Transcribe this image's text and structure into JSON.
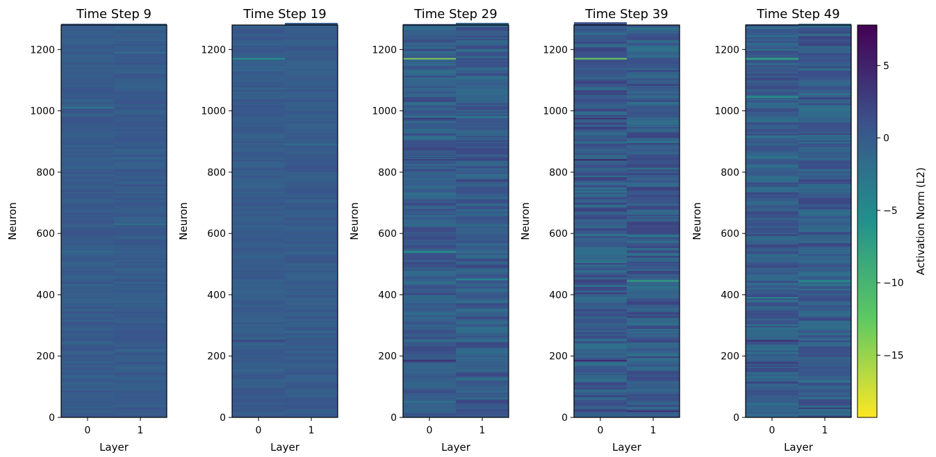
{
  "chart_data": {
    "type": "heatmap",
    "colormap": "viridis_r",
    "colors": {
      "background": "#ffffff",
      "axis": "#000000",
      "base_cell": "#2f5e8e",
      "viridis_r_stops": [
        "#fde725",
        "#5ec962",
        "#21918c",
        "#3b528b",
        "#440154"
      ]
    },
    "y_range": [
      0,
      1280
    ],
    "y_ticks": [
      0,
      200,
      400,
      600,
      800,
      1000,
      1200
    ],
    "x_categories": [
      "0",
      "1"
    ],
    "xlabel": "Layer",
    "ylabel": "Neuron",
    "panels": [
      {
        "title": "Time Step 9",
        "noise": 0.35,
        "bright_lines": [
          {
            "layer": 0,
            "neuron": 1010,
            "value": -3
          },
          {
            "layer": 1,
            "neuron": 1190,
            "value": -2
          },
          {
            "layer": 0,
            "neuron": 540,
            "value": -2
          },
          {
            "layer": 1,
            "neuron": 630,
            "value": -2
          }
        ]
      },
      {
        "title": "Time Step 19",
        "noise": 0.35,
        "bright_lines": [
          {
            "layer": 0,
            "neuron": 1170,
            "value": -6
          },
          {
            "layer": 1,
            "neuron": 890,
            "value": -2
          },
          {
            "layer": 0,
            "neuron": 250,
            "value": 2
          }
        ]
      },
      {
        "title": "Time Step 29",
        "noise": 0.9,
        "bright_lines": [
          {
            "layer": 0,
            "neuron": 1170,
            "value": -14
          },
          {
            "layer": 0,
            "neuron": 540,
            "value": -6
          },
          {
            "layer": 0,
            "neuron": 975,
            "value": 3
          },
          {
            "layer": 0,
            "neuron": 840,
            "value": 3
          },
          {
            "layer": 0,
            "neuron": 185,
            "value": 4
          },
          {
            "layer": 1,
            "neuron": 450,
            "value": -5
          },
          {
            "layer": 1,
            "neuron": 980,
            "value": -4
          }
        ]
      },
      {
        "title": "Time Step 39",
        "noise": 1.1,
        "bright_lines": [
          {
            "layer": 0,
            "neuron": 1170,
            "value": -13
          },
          {
            "layer": 0,
            "neuron": 975,
            "value": 4
          },
          {
            "layer": 0,
            "neuron": 840,
            "value": 5
          },
          {
            "layer": 0,
            "neuron": 185,
            "value": 5
          },
          {
            "layer": 1,
            "neuron": 445,
            "value": -8
          },
          {
            "layer": 1,
            "neuron": 20,
            "value": 4
          }
        ]
      },
      {
        "title": "Time Step 49",
        "noise": 1.0,
        "bright_lines": [
          {
            "layer": 0,
            "neuron": 1170,
            "value": -8
          },
          {
            "layer": 0,
            "neuron": 1045,
            "value": -6
          },
          {
            "layer": 0,
            "neuron": 250,
            "value": 4
          },
          {
            "layer": 0,
            "neuron": 390,
            "value": -5
          },
          {
            "layer": 1,
            "neuron": 445,
            "value": -6
          },
          {
            "layer": 1,
            "neuron": 30,
            "value": 3
          }
        ]
      }
    ],
    "colorbar": {
      "label": "Activation Norm (L2)",
      "range": [
        -19.3,
        7.8
      ],
      "ticks": [
        5,
        0,
        -5,
        -10,
        -15
      ],
      "tick_labels": [
        "5",
        "0",
        "−5",
        "−10",
        "−15"
      ]
    }
  }
}
